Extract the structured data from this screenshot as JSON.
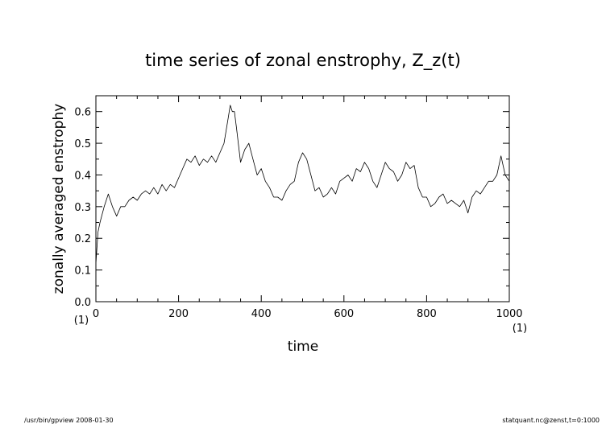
{
  "footer": {
    "left": "/usr/bin/gpview   2008-01-30",
    "right": "statquant.nc@zenst,t=0:1000"
  },
  "chart_data": {
    "type": "line",
    "title": "time series of zonal enstrophy, Z_z(t)",
    "xlabel": "time",
    "ylabel": "zonally averaged enstrophy",
    "xlim": [
      0,
      1000
    ],
    "ylim": [
      0.0,
      0.65
    ],
    "x_ticks": [
      0,
      200,
      400,
      600,
      800,
      1000
    ],
    "y_ticks": [
      0.0,
      0.1,
      0.2,
      0.3,
      0.4,
      0.5,
      0.6
    ],
    "x_tick_labels": [
      "0",
      "200",
      "400",
      "600",
      "800",
      "1000"
    ],
    "y_tick_labels": [
      "0.0",
      "0.1",
      "0.2",
      "0.3",
      "0.4",
      "0.5",
      "0.6"
    ],
    "index_left": "(1)",
    "index_right": "(1)",
    "grid": false,
    "series": [
      {
        "color": "#000000",
        "x": [
          0,
          5,
          10,
          20,
          30,
          40,
          50,
          60,
          70,
          80,
          90,
          100,
          110,
          120,
          130,
          140,
          150,
          160,
          170,
          180,
          190,
          200,
          210,
          220,
          230,
          240,
          250,
          260,
          270,
          280,
          290,
          300,
          310,
          320,
          325,
          330,
          335,
          340,
          350,
          360,
          370,
          380,
          390,
          400,
          410,
          420,
          430,
          440,
          450,
          460,
          470,
          480,
          490,
          500,
          510,
          520,
          530,
          540,
          550,
          560,
          570,
          580,
          590,
          600,
          610,
          620,
          630,
          640,
          650,
          660,
          670,
          680,
          690,
          700,
          710,
          720,
          730,
          740,
          750,
          760,
          770,
          780,
          790,
          800,
          810,
          820,
          830,
          840,
          850,
          860,
          870,
          880,
          890,
          900,
          910,
          920,
          930,
          940,
          950,
          960,
          970,
          980,
          990,
          1000
        ],
        "values": [
          0.12,
          0.22,
          0.25,
          0.3,
          0.34,
          0.3,
          0.27,
          0.3,
          0.3,
          0.32,
          0.33,
          0.32,
          0.34,
          0.35,
          0.34,
          0.36,
          0.34,
          0.37,
          0.35,
          0.37,
          0.36,
          0.39,
          0.42,
          0.45,
          0.44,
          0.46,
          0.43,
          0.45,
          0.44,
          0.46,
          0.44,
          0.47,
          0.5,
          0.58,
          0.62,
          0.6,
          0.6,
          0.55,
          0.44,
          0.48,
          0.5,
          0.45,
          0.4,
          0.42,
          0.38,
          0.36,
          0.33,
          0.33,
          0.32,
          0.35,
          0.37,
          0.38,
          0.44,
          0.47,
          0.45,
          0.4,
          0.35,
          0.36,
          0.33,
          0.34,
          0.36,
          0.34,
          0.38,
          0.39,
          0.4,
          0.38,
          0.42,
          0.41,
          0.44,
          0.42,
          0.38,
          0.36,
          0.4,
          0.44,
          0.42,
          0.41,
          0.38,
          0.4,
          0.44,
          0.42,
          0.43,
          0.36,
          0.33,
          0.33,
          0.3,
          0.31,
          0.33,
          0.34,
          0.31,
          0.32,
          0.31,
          0.3,
          0.32,
          0.28,
          0.33,
          0.35,
          0.34,
          0.36,
          0.38,
          0.38,
          0.4,
          0.46,
          0.4,
          0.38
        ]
      }
    ]
  }
}
